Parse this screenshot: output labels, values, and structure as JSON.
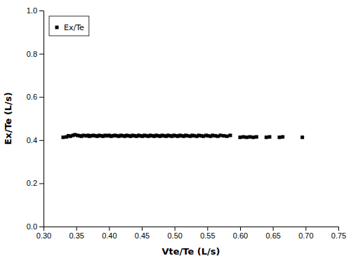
{
  "chart_data": {
    "type": "scatter",
    "xlabel": "Vte/Te (L/s)",
    "ylabel": "Ex/Te (L/s)",
    "x": [
      0.33,
      0.335,
      0.338,
      0.341,
      0.345,
      0.348,
      0.352,
      0.355,
      0.358,
      0.361,
      0.365,
      0.368,
      0.37,
      0.373,
      0.376,
      0.379,
      0.382,
      0.385,
      0.388,
      0.391,
      0.394,
      0.397,
      0.4,
      0.403,
      0.406,
      0.409,
      0.412,
      0.415,
      0.418,
      0.421,
      0.424,
      0.427,
      0.43,
      0.433,
      0.436,
      0.439,
      0.442,
      0.445,
      0.448,
      0.451,
      0.454,
      0.457,
      0.46,
      0.463,
      0.466,
      0.469,
      0.472,
      0.475,
      0.478,
      0.481,
      0.484,
      0.487,
      0.49,
      0.493,
      0.496,
      0.499,
      0.502,
      0.505,
      0.508,
      0.511,
      0.514,
      0.517,
      0.52,
      0.524,
      0.527,
      0.53,
      0.534,
      0.537,
      0.541,
      0.544,
      0.548,
      0.551,
      0.555,
      0.558,
      0.562,
      0.566,
      0.57,
      0.575,
      0.58,
      0.585,
      0.6,
      0.605,
      0.61,
      0.615,
      0.62,
      0.625,
      0.64,
      0.645,
      0.66,
      0.665,
      0.695
    ],
    "series": [
      {
        "name": "Ex/Te",
        "color": "#000000",
        "marker": "square",
        "values": [
          0.413,
          0.415,
          0.42,
          0.418,
          0.422,
          0.425,
          0.422,
          0.42,
          0.418,
          0.422,
          0.42,
          0.422,
          0.418,
          0.42,
          0.422,
          0.42,
          0.418,
          0.422,
          0.42,
          0.418,
          0.422,
          0.42,
          0.422,
          0.418,
          0.42,
          0.422,
          0.42,
          0.418,
          0.422,
          0.42,
          0.418,
          0.422,
          0.42,
          0.418,
          0.422,
          0.42,
          0.418,
          0.422,
          0.42,
          0.418,
          0.422,
          0.42,
          0.418,
          0.422,
          0.42,
          0.418,
          0.422,
          0.42,
          0.418,
          0.422,
          0.42,
          0.418,
          0.422,
          0.42,
          0.418,
          0.422,
          0.42,
          0.418,
          0.422,
          0.42,
          0.418,
          0.422,
          0.42,
          0.418,
          0.422,
          0.42,
          0.418,
          0.422,
          0.42,
          0.418,
          0.422,
          0.42,
          0.418,
          0.422,
          0.42,
          0.418,
          0.422,
          0.42,
          0.418,
          0.422,
          0.413,
          0.415,
          0.413,
          0.415,
          0.413,
          0.415,
          0.413,
          0.415,
          0.413,
          0.415,
          0.413
        ]
      }
    ],
    "xlim": [
      0.3,
      0.75
    ],
    "ylim": [
      0.0,
      1.0
    ],
    "xticks": [
      {
        "value": 0.3,
        "label": "0.30"
      },
      0.35,
      {
        "value": 0.4,
        "label": "0.40"
      },
      0.45,
      {
        "value": 0.5,
        "label": "0.50"
      },
      0.55,
      {
        "value": 0.6,
        "label": "0.60"
      },
      0.65,
      {
        "value": 0.7,
        "label": "0.70"
      },
      0.75
    ],
    "yticks": [
      {
        "value": 0,
        "label": "0.0"
      },
      0.2,
      0.4,
      0.6,
      0.8,
      {
        "value": 1,
        "label": "1.0"
      }
    ],
    "legend": "upper left",
    "grid": false
  }
}
